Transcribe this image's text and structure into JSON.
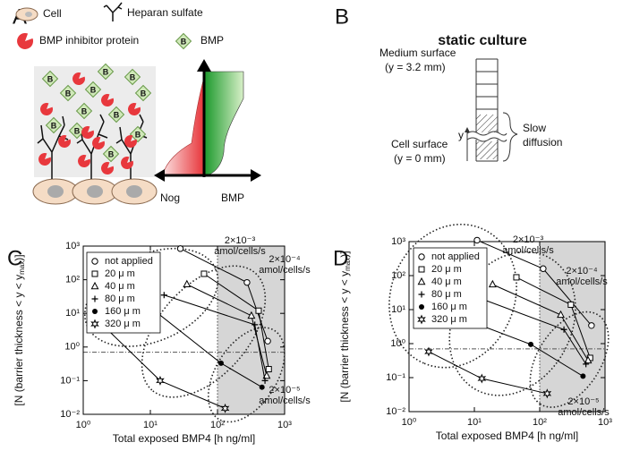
{
  "panel_labels": [
    "A",
    "B",
    "C",
    "D"
  ],
  "panel_a": {
    "legend": [
      "Cell",
      "Heparan sulfate",
      "BMP inhibitor protein",
      "BMP"
    ],
    "bmp_symbol": "B",
    "x_left": "Nog",
    "x_right": "BMP"
  },
  "panel_b": {
    "title": "static culture",
    "top_label": "Medium surface",
    "top_value": "(y = 3.2 mm)",
    "bottom_label": "Cell surface",
    "bottom_value": "(y = 0 mm)",
    "axis": "y",
    "brace_label": [
      "Slow",
      "diffusion"
    ]
  },
  "chart_data": [
    {
      "type": "line",
      "log_x": true,
      "log_y": true,
      "xlabel": "Total exposed BMP4 [h ng/ml]",
      "ylabel": [
        "[N (barrier thickness < y < y",
        "max",
        ")]"
      ],
      "xlim": [
        1,
        1000
      ],
      "ylim": [
        0.01,
        1000
      ],
      "xticks": [
        {
          "value": 1,
          "label": "10⁰"
        },
        {
          "value": 10,
          "label": "10¹"
        },
        {
          "value": 100,
          "label": "10²"
        },
        {
          "value": 1000,
          "label": "10³"
        }
      ],
      "yticks": [
        {
          "value": 0.01,
          "label": "10⁻²"
        },
        {
          "value": 0.1,
          "label": "10⁻¹"
        },
        {
          "value": 1,
          "label": "10⁰"
        },
        {
          "value": 10,
          "label": "10¹"
        },
        {
          "value": 100,
          "label": "10²"
        },
        {
          "value": 1000,
          "label": "10³"
        }
      ],
      "shaded_xrange": [
        100,
        1000
      ],
      "vline": 100,
      "hline": 0.7,
      "legend": "upper left",
      "annotations": [
        {
          "text": "2×10⁻³",
          "unit": "amol/cells/s"
        },
        {
          "text": "2×10⁻⁴",
          "unit": "amol/cells/s"
        },
        {
          "text": "2×10⁻⁵",
          "unit": "amol/cells/s"
        }
      ],
      "series": [
        {
          "name": "not applied",
          "marker": "circle",
          "color": "#000000",
          "x": [
            28,
            275,
            560
          ],
          "y": [
            840,
            83,
            1.5
          ]
        },
        {
          "name": "20 μ m",
          "marker": "square",
          "color": "#000000",
          "x": [
            63,
            410,
            580
          ],
          "y": [
            150,
            12,
            0.22
          ]
        },
        {
          "name": "40 μ m",
          "marker": "triangle",
          "color": "#000000",
          "x": [
            35,
            320,
            540
          ],
          "y": [
            73,
            8.5,
            0.14
          ]
        },
        {
          "name": "80 μ m",
          "marker": "plus",
          "color": "#000000",
          "x": [
            16,
            360,
            510
          ],
          "y": [
            35,
            4.6,
            0.1
          ]
        },
        {
          "name": "160 μ m",
          "marker": "dot",
          "color": "#000000",
          "x": [
            10,
            113,
            460
          ],
          "y": [
            15,
            0.33,
            0.064
          ]
        },
        {
          "name": "320 μ m",
          "marker": "star",
          "color": "#000000",
          "x": [
            1.7,
            14,
            130
          ],
          "y": [
            5.9,
            0.1,
            0.015
          ]
        }
      ]
    },
    {
      "type": "line",
      "log_x": true,
      "log_y": true,
      "xlabel": "Total exposed BMP4 [h ng/ml]",
      "ylabel": [
        "[N (barrier thickness < y < y",
        "max",
        ")]"
      ],
      "xlim": [
        1,
        1000
      ],
      "ylim": [
        0.01,
        1000
      ],
      "xticks": [
        {
          "value": 1,
          "label": "10⁰"
        },
        {
          "value": 10,
          "label": "10¹"
        },
        {
          "value": 100,
          "label": "10²"
        },
        {
          "value": 1000,
          "label": "10³"
        }
      ],
      "yticks": [
        {
          "value": 0.01,
          "label": "10⁻²"
        },
        {
          "value": 0.1,
          "label": "10⁻¹"
        },
        {
          "value": 1,
          "label": "10⁰"
        },
        {
          "value": 10,
          "label": "10¹"
        },
        {
          "value": 100,
          "label": "10²"
        },
        {
          "value": 1000,
          "label": "10³"
        }
      ],
      "shaded_xrange": [
        100,
        1000
      ],
      "vline": 100,
      "hline": 0.7,
      "legend": "upper left",
      "annotations": [
        {
          "text": "2×10⁻³",
          "unit": "amol/cells/s"
        },
        {
          "text": "2×10⁻⁴",
          "unit": "amol/cells/s"
        },
        {
          "text": "2×10⁻⁵",
          "unit": "amol/cells/s"
        }
      ],
      "series": [
        {
          "name": "not applied",
          "marker": "circle",
          "color": "#000000",
          "x": [
            11,
            113,
            620
          ],
          "y": [
            1100,
            160,
            3.4
          ]
        },
        {
          "name": "20 μ m",
          "marker": "square",
          "color": "#000000",
          "x": [
            44,
            300,
            590
          ],
          "y": [
            89,
            14,
            0.38
          ]
        },
        {
          "name": "40 μ m",
          "marker": "triangle",
          "color": "#000000",
          "x": [
            19,
            210,
            550
          ],
          "y": [
            55,
            7,
            0.32
          ]
        },
        {
          "name": "80 μ m",
          "marker": "plus",
          "color": "#000000",
          "x": [
            9.4,
            235,
            510
          ],
          "y": [
            26,
            2.6,
            0.25
          ]
        },
        {
          "name": "160 μ m",
          "marker": "dot",
          "color": "#000000",
          "x": [
            2.9,
            73,
            460
          ],
          "y": [
            10,
            0.95,
            0.11
          ]
        },
        {
          "name": "320 μ m",
          "marker": "star",
          "color": "#000000",
          "x": [
            2,
            13,
            130
          ],
          "y": [
            0.58,
            0.094,
            0.034
          ]
        }
      ]
    }
  ]
}
